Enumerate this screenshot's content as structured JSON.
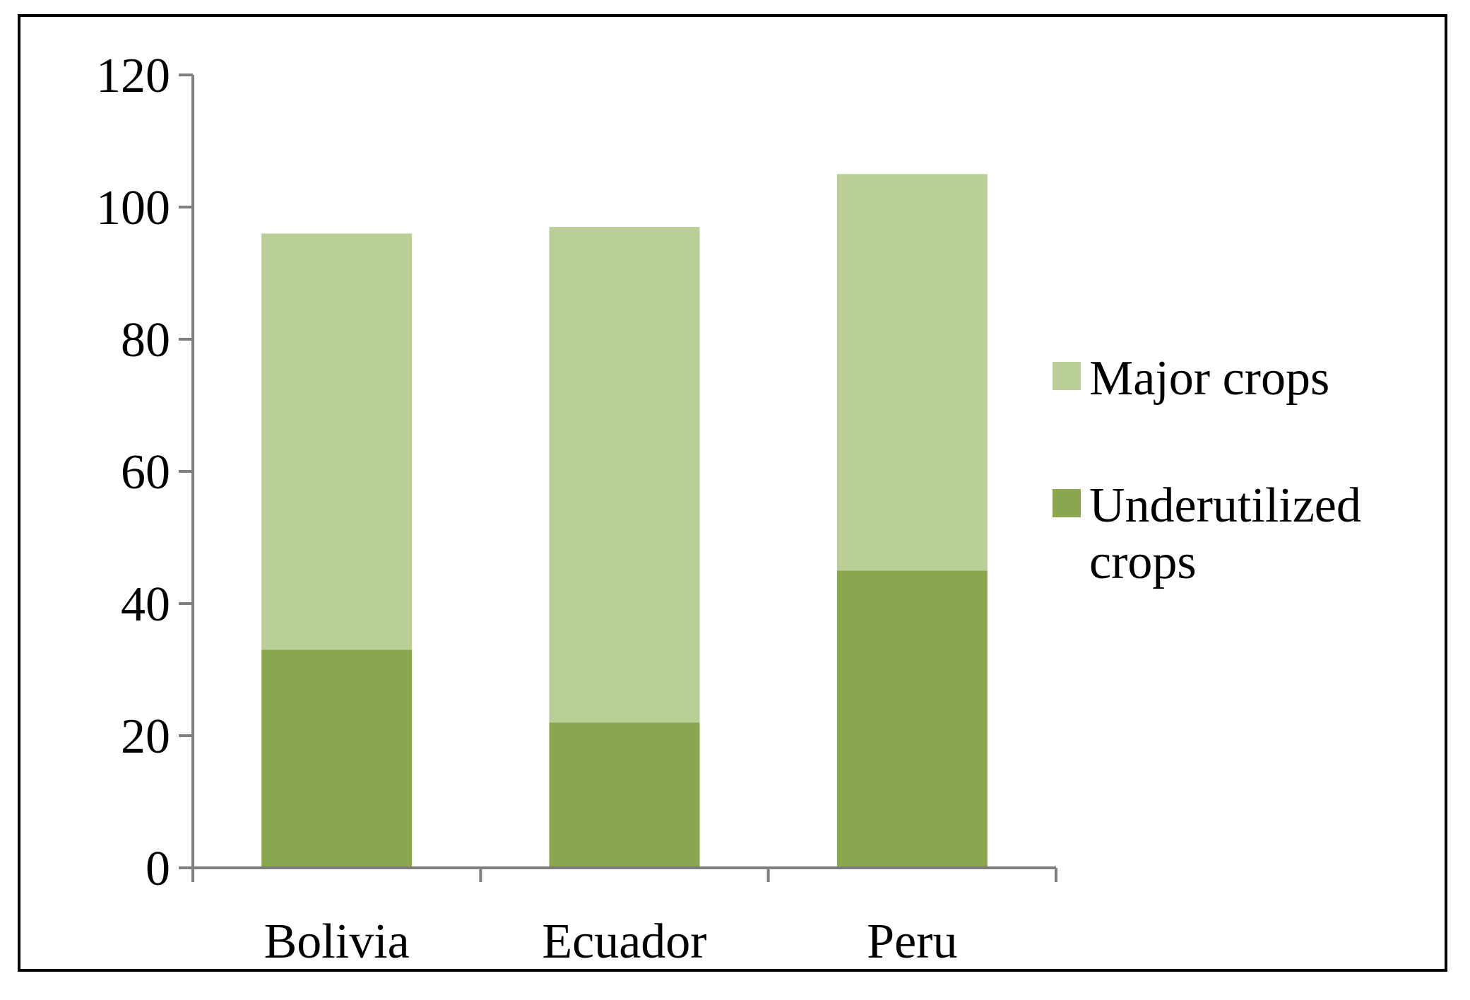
{
  "chart_data": {
    "type": "bar",
    "stacked": true,
    "categories": [
      "Bolivia",
      "Ecuador",
      "Peru"
    ],
    "series": [
      {
        "name": "Underutilized crops",
        "values": [
          33,
          22,
          45
        ],
        "color": "#8aa64f"
      },
      {
        "name": "Major crops",
        "values": [
          63,
          75,
          60
        ],
        "color": "#bacf98"
      }
    ],
    "title": "",
    "xlabel": "",
    "ylabel": "",
    "ylim": [
      0,
      120
    ],
    "yticks": [
      "0",
      "20",
      "40",
      "60",
      "80",
      "100",
      "120"
    ],
    "grid": false,
    "legend": {
      "position": "right",
      "order": [
        "Major crops",
        "Underutilized crops"
      ],
      "label_lines": {
        "Major crops": [
          "Major crops"
        ],
        "Underutilized crops": [
          "Underutilized",
          "crops"
        ]
      }
    },
    "axis_color": "#7f7f7f"
  }
}
